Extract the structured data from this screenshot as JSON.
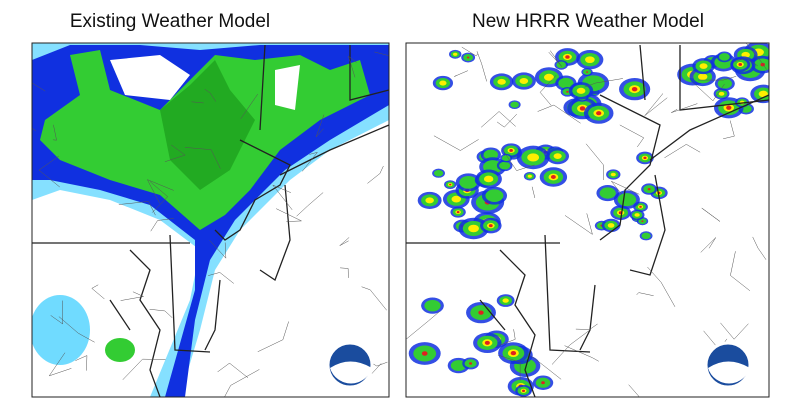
{
  "panels": [
    {
      "title": "Existing Weather Model"
    },
    {
      "title": "New HRRR Weather Model"
    }
  ]
}
